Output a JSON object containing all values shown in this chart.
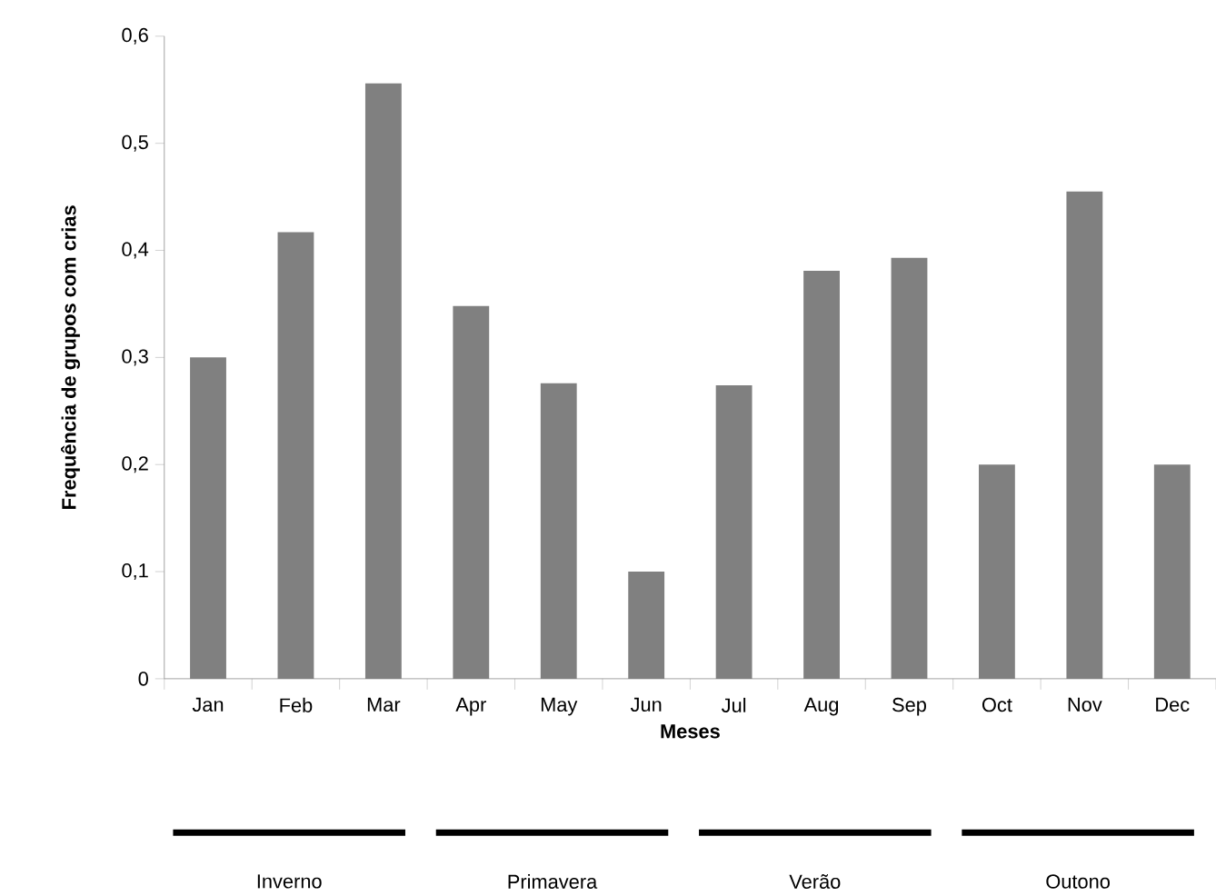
{
  "chart_data": {
    "type": "bar",
    "xlabel": "Meses",
    "ylabel": "Frequência de grupos com crias",
    "categories": [
      "Jan",
      "Feb",
      "Mar",
      "Apr",
      "May",
      "Jun",
      "Jul",
      "Aug",
      "Sep",
      "Oct",
      "Nov",
      "Dec"
    ],
    "values": [
      0.3,
      0.417,
      0.556,
      0.348,
      0.276,
      0.1,
      0.274,
      0.381,
      0.393,
      0.2,
      0.455,
      0.2
    ],
    "color": "#808080",
    "ylim": [
      0,
      0.6
    ],
    "yticks": [
      0,
      {
        "value": 0.1,
        "label": "0,1"
      },
      {
        "value": 0.2,
        "label": "0,2"
      },
      {
        "value": 0.3,
        "label": "0,3"
      },
      {
        "value": 0.4,
        "label": "0,4"
      },
      {
        "value": 0.5,
        "label": "0,5"
      },
      {
        "value": 0.6,
        "label": "0,6"
      }
    ],
    "annotations": [
      "Inverno",
      "Primavera",
      "Verão",
      "Outono"
    ]
  }
}
